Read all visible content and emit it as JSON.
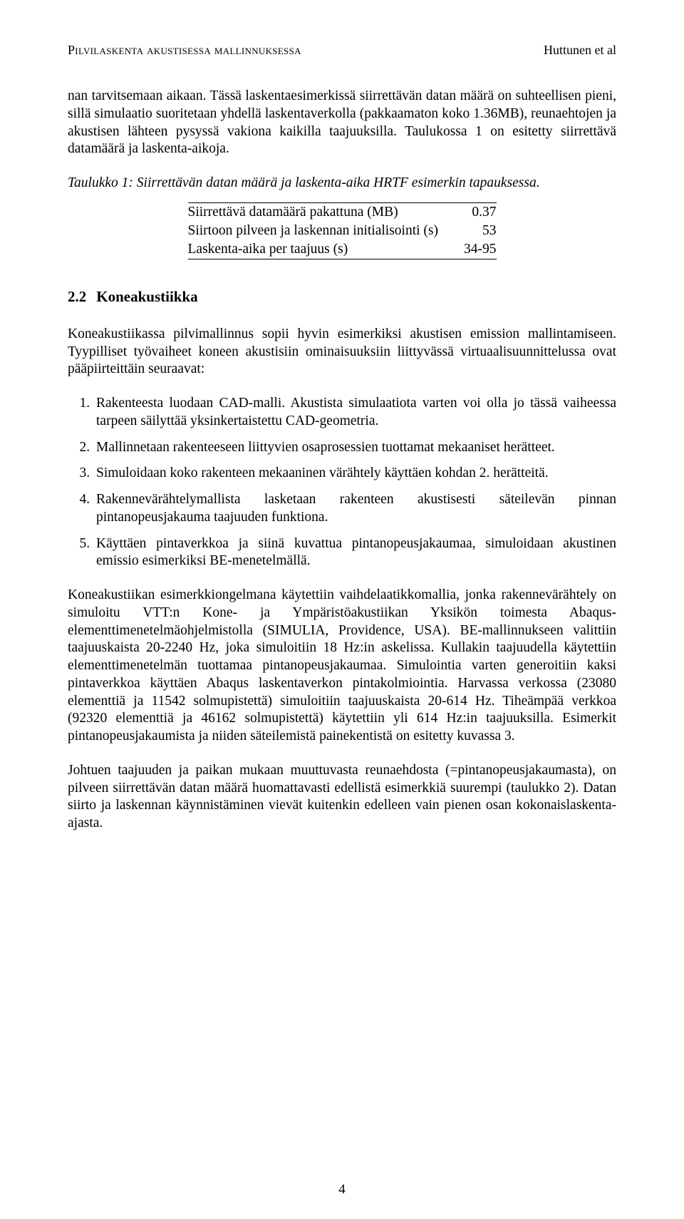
{
  "header": {
    "left": "Pilvilaskenta akustisessa mallinnuksessa",
    "right": "Huttunen et al"
  },
  "para1": "nan tarvitsemaan aikaan. Tässä laskentaesimerkissä siirrettävän datan määrä on suhteellisen pieni, sillä simulaatio suoritetaan yhdellä laskentaverkolla (pakkaamaton koko 1.36MB), reunaehtojen ja akustisen lähteen pysyssä vakiona kaikilla taajuuksilla. Taulukossa 1 on esitetty siirrettävä datamäärä ja laskenta-aikoja.",
  "table1": {
    "caption": "Taulukko 1: Siirrettävän datan määrä ja laskenta-aika HRTF esimerkin tapauksessa.",
    "rows": [
      {
        "label": "Siirrettävä datamäärä pakattuna (MB)",
        "value": "0.37"
      },
      {
        "label": "Siirtoon pilveen ja laskennan initialisointi (s)",
        "value": "53"
      },
      {
        "label": "Laskenta-aika per taajuus (s)",
        "value": "34-95"
      }
    ]
  },
  "subsection": {
    "number": "2.2",
    "title": "Koneakustiikka"
  },
  "para2": "Koneakustiikassa pilvimallinnus sopii hyvin esimerkiksi akustisen emission mallintamiseen. Tyypilliset työvaiheet koneen akustisiin ominaisuuksiin liittyvässä virtuaalisuunnittelussa ovat pääpiirteittäin seuraavat:",
  "steps": [
    "Rakenteesta luodaan CAD-malli. Akustista simulaatiota varten voi olla jo tässä vaiheessa tarpeen säilyttää yksinkertaistettu CAD-geometria.",
    "Mallinnetaan rakenteeseen liittyvien osaprosessien tuottamat mekaaniset herätteet.",
    "Simuloidaan koko rakenteen mekaaninen värähtely käyttäen kohdan 2. herätteitä.",
    "Rakennevärähtelymallista lasketaan rakenteen akustisesti säteilevän pinnan pintanopeusjakauma taajuuden funktiona.",
    "Käyttäen pintaverkkoa ja siinä kuvattua pintanopeusjakaumaa, simuloidaan akustinen emissio esimerkiksi BE-menetelmällä."
  ],
  "para3": "Koneakustiikan esimerkkiongelmana käytettiin vaihdelaatikkomallia, jonka rakennevärähtely on simuloitu VTT:n Kone- ja Ympäristöakustiikan Yksikön toimesta Abaqus-elementtimenetelmäohjelmistolla (SIMULIA, Providence, USA). BE-mallinnukseen valittiin taajuuskaista 20-2240 Hz, joka simuloitiin 18 Hz:in askelissa. Kullakin taajuudella käytettiin elementtimenetelmän tuottamaa pintanopeusjakaumaa. Simulointia varten generoitiin kaksi pintaverkkoa käyttäen Abaqus laskentaverkon pintakolmiointia. Harvassa verkossa (23080 elementtiä ja 11542 solmupistettä) simuloitiin taajuuskaista 20-614 Hz. Tiheämpää verkkoa (92320 elementtiä ja 46162 solmupistettä) käytettiin yli 614 Hz:in taajuuksilla. Esimerkit pintanopeusjakaumista ja niiden säteilemistä painekentistä on esitetty kuvassa 3.",
  "para4": "Johtuen taajuuden ja paikan mukaan muuttuvasta reunaehdosta (=pintanopeusjakaumasta), on pilveen siirrettävän datan määrä huomattavasti edellistä esimerkkiä suurempi (taulukko 2). Datan siirto ja laskennan käynnistäminen vievät kuitenkin edelleen vain pienen osan kokonaislaskenta-ajasta.",
  "pagenum": "4"
}
